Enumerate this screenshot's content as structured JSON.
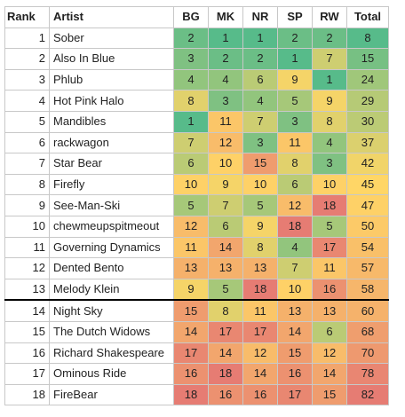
{
  "headers": [
    "Rank",
    "Artist",
    "BG",
    "MK",
    "NR",
    "SP",
    "RW",
    "Total"
  ],
  "rows": [
    {
      "rank": "1",
      "artist": "Sober",
      "scores": [
        "2",
        "1",
        "1",
        "2",
        "2"
      ],
      "total": "8"
    },
    {
      "rank": "2",
      "artist": "Also In Blue",
      "scores": [
        "3",
        "2",
        "2",
        "1",
        "7"
      ],
      "total": "15"
    },
    {
      "rank": "3",
      "artist": "Phlub",
      "scores": [
        "4",
        "4",
        "6",
        "9",
        "1"
      ],
      "total": "24"
    },
    {
      "rank": "4",
      "artist": "Hot Pink Halo",
      "scores": [
        "8",
        "3",
        "4",
        "5",
        "9"
      ],
      "total": "29"
    },
    {
      "rank": "5",
      "artist": "Mandibles",
      "scores": [
        "1",
        "11",
        "7",
        "3",
        "8"
      ],
      "total": "30"
    },
    {
      "rank": "6",
      "artist": "rackwagon",
      "scores": [
        "7",
        "12",
        "3",
        "11",
        "4"
      ],
      "total": "37"
    },
    {
      "rank": "7",
      "artist": "Star Bear",
      "scores": [
        "6",
        "10",
        "15",
        "8",
        "3"
      ],
      "total": "42"
    },
    {
      "rank": "8",
      "artist": "Firefly",
      "scores": [
        "10",
        "9",
        "10",
        "6",
        "10"
      ],
      "total": "45"
    },
    {
      "rank": "9",
      "artist": "See-Man-Ski",
      "scores": [
        "5",
        "7",
        "5",
        "12",
        "18"
      ],
      "total": "47"
    },
    {
      "rank": "10",
      "artist": "chewmeupspitmeout",
      "scores": [
        "12",
        "6",
        "9",
        "18",
        "5"
      ],
      "total": "50"
    },
    {
      "rank": "11",
      "artist": "Governing Dynamics",
      "scores": [
        "11",
        "14",
        "8",
        "4",
        "17"
      ],
      "total": "54"
    },
    {
      "rank": "12",
      "artist": "Dented Bento",
      "scores": [
        "13",
        "13",
        "13",
        "7",
        "11"
      ],
      "total": "57"
    },
    {
      "rank": "13",
      "artist": "Melody Klein",
      "scores": [
        "9",
        "5",
        "18",
        "10",
        "16"
      ],
      "total": "58"
    },
    {
      "rank": "14",
      "artist": "Night Sky",
      "scores": [
        "15",
        "8",
        "11",
        "13",
        "13"
      ],
      "total": "60"
    },
    {
      "rank": "15",
      "artist": "The Dutch Widows",
      "scores": [
        "14",
        "17",
        "17",
        "14",
        "6"
      ],
      "total": "68"
    },
    {
      "rank": "16",
      "artist": "Richard Shakespeare",
      "scores": [
        "17",
        "14",
        "12",
        "15",
        "12"
      ],
      "total": "70"
    },
    {
      "rank": "17",
      "artist": "Ominous Ride",
      "scores": [
        "16",
        "18",
        "14",
        "16",
        "14"
      ],
      "total": "78"
    },
    {
      "rank": "18",
      "artist": "FireBear",
      "scores": [
        "18",
        "16",
        "16",
        "17",
        "15"
      ],
      "total": "82"
    }
  ],
  "cutoff_after_rank": 13,
  "colors": {
    "good": "#57bb8a",
    "mid": "#ffd666",
    "bad": "#e67c73"
  }
}
